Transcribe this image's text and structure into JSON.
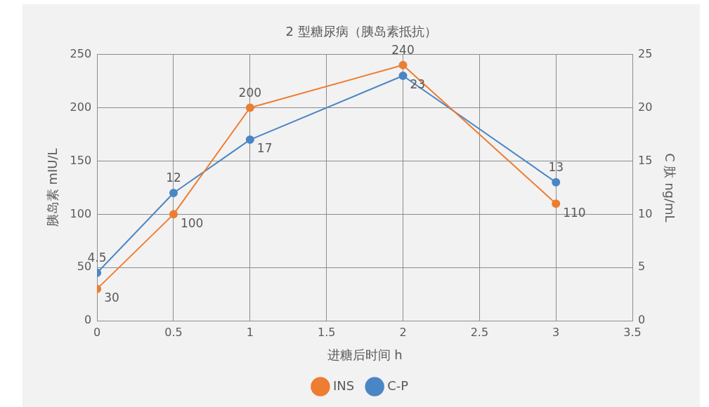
{
  "chart_data": {
    "type": "line",
    "title": "2 型糖尿病（胰岛素抵抗）",
    "xlabel": "进糖后时间 h",
    "ylabel": "胰岛素 mIU/L",
    "y2label": "C 肽 ng/mL",
    "x": [
      0,
      0.5,
      1,
      2,
      3
    ],
    "series": [
      {
        "name": "INS",
        "color": "#ed7d31",
        "values": [
          30,
          100,
          200,
          240,
          110
        ]
      },
      {
        "name": "C-P",
        "color": "#4a86c5",
        "values": [
          4.5,
          12,
          17,
          23,
          13
        ],
        "axis": "y2"
      }
    ],
    "xlim": [
      0,
      3.5
    ],
    "xticks": [
      0,
      0.5,
      1,
      1.5,
      2,
      2.5,
      3,
      3.5
    ],
    "ylim": [
      0,
      250
    ],
    "yticks": [
      0,
      50,
      100,
      150,
      200,
      250
    ],
    "y2lim": [
      0,
      25
    ],
    "y2ticks": [
      0,
      5,
      10,
      15,
      20,
      25
    ],
    "grid": true,
    "legend": "bottom",
    "marker": "circle",
    "line_style": "solid",
    "data_labels": true
  }
}
